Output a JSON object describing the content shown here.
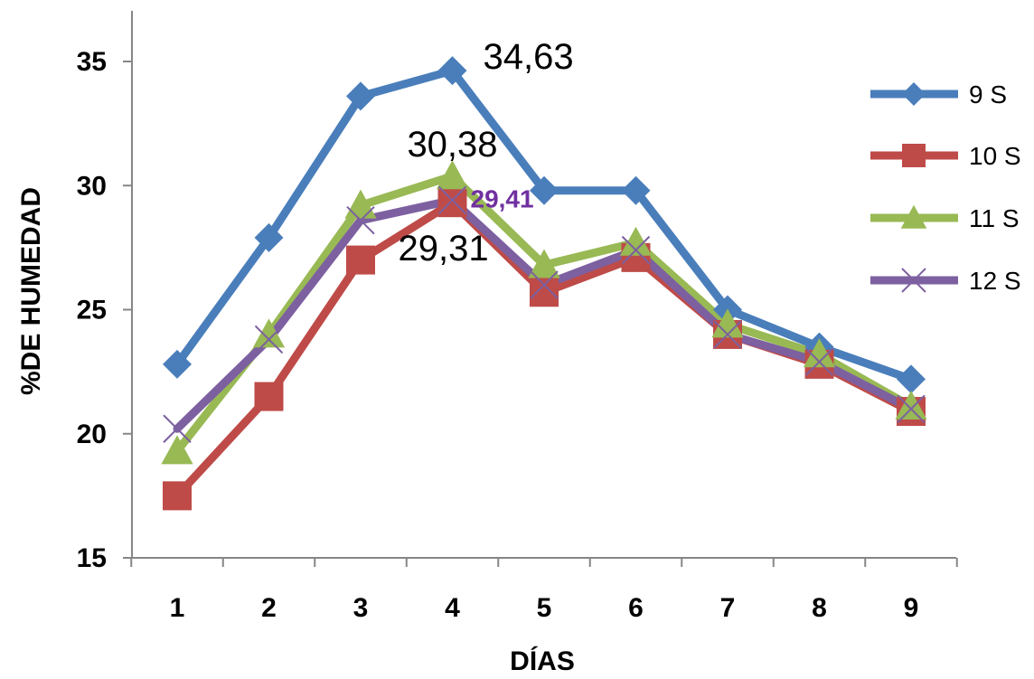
{
  "chart_data": {
    "type": "line",
    "xlabel": "DÍAS",
    "ylabel": "%DE HUMEDAD",
    "categories": [
      "1",
      "2",
      "3",
      "4",
      "5",
      "6",
      "7",
      "8",
      "9"
    ],
    "ylim": [
      15,
      35
    ],
    "yticks": [
      15,
      20,
      25,
      30,
      35
    ],
    "grid": false,
    "legend_position": "right",
    "series": [
      {
        "name": "9 S",
        "color": "#4a7ebb",
        "marker": "diamond",
        "values": [
          22.8,
          27.9,
          33.6,
          34.63,
          29.8,
          29.8,
          25.0,
          23.5,
          22.2
        ]
      },
      {
        "name": "10 S",
        "color": "#be4b48",
        "marker": "square",
        "values": [
          17.5,
          21.5,
          27.0,
          29.31,
          25.7,
          27.1,
          24.0,
          22.8,
          20.9
        ]
      },
      {
        "name": "11 S",
        "color": "#98b954",
        "marker": "triangle",
        "values": [
          19.3,
          24.0,
          29.2,
          30.38,
          26.8,
          27.7,
          24.4,
          23.2,
          21.1
        ]
      },
      {
        "name": "12 S",
        "color": "#7d60a0",
        "marker": "x",
        "values": [
          20.2,
          23.8,
          28.6,
          29.41,
          26.0,
          27.4,
          24.0,
          22.9,
          21.0
        ]
      }
    ],
    "annotations": [
      {
        "text": "34,63",
        "series": 0,
        "index": 3,
        "color": "#000000"
      },
      {
        "text": "30,38",
        "series": 2,
        "index": 3,
        "color": "#000000"
      },
      {
        "text": "29,41",
        "series": 3,
        "index": 3,
        "color": "#7030a0"
      },
      {
        "text": "29,31",
        "series": 1,
        "index": 3,
        "color": "#000000"
      }
    ]
  }
}
